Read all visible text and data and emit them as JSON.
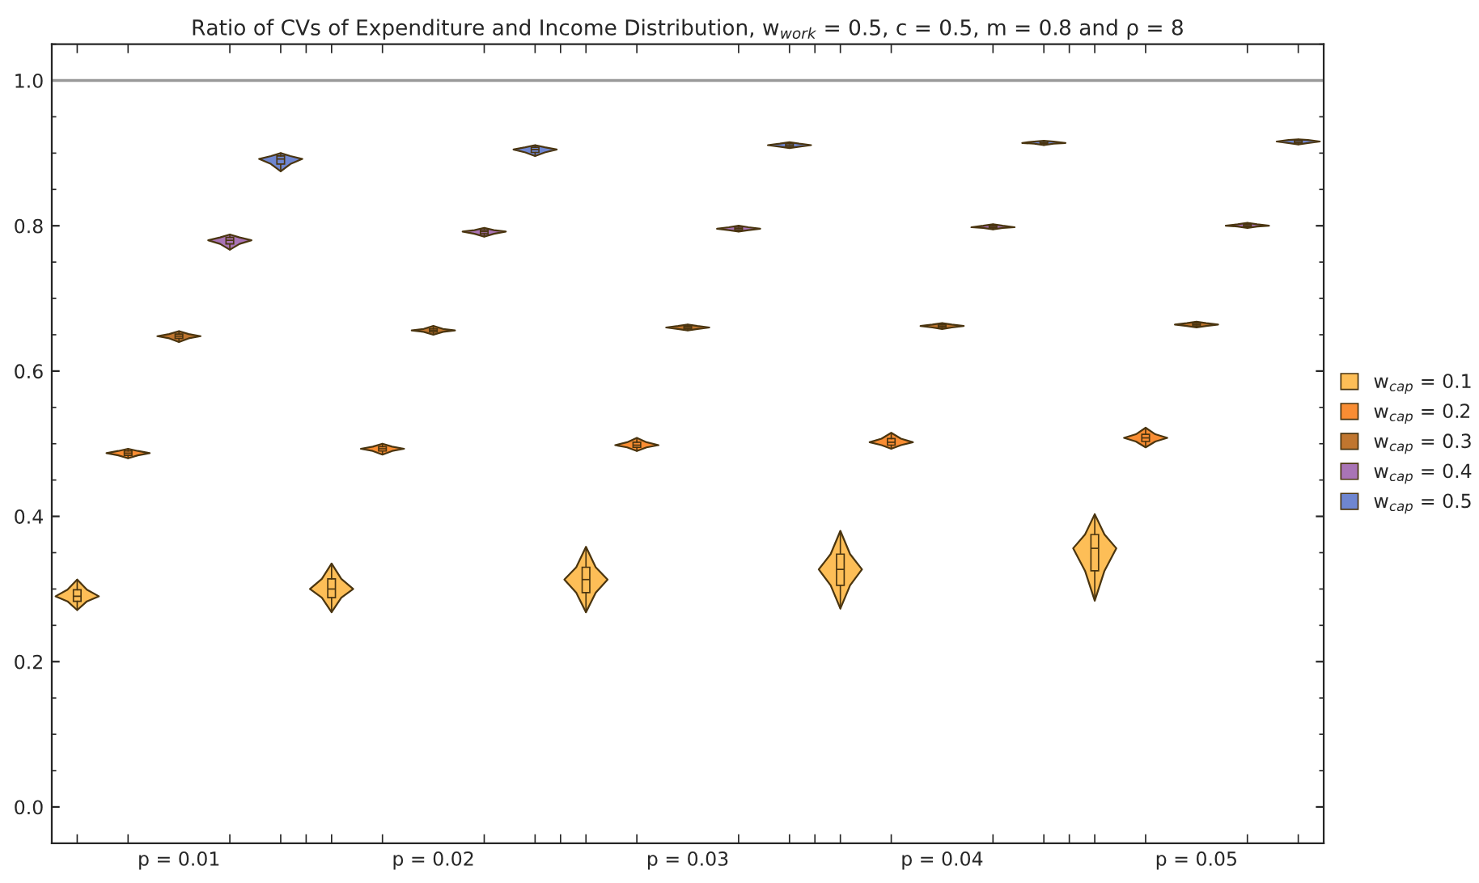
{
  "chart_data": {
    "type": "box",
    "title": "Ratio of CVs of Expenditure and Income Distribution, w$_{work}$ = 0.5, c = 0.5, m = 0.8 and ρ = 8",
    "categories": [
      "p = 0.01",
      "p = 0.02",
      "p = 0.03",
      "p = 0.04",
      "p = 0.05"
    ],
    "series": [
      {
        "name": "w$_{cap}$ = 0.1",
        "color": "#fdbe57",
        "boxes": [
          {
            "low": 0.271,
            "q1": 0.283,
            "median": 0.29,
            "q3": 0.299,
            "high": 0.313
          },
          {
            "low": 0.268,
            "q1": 0.288,
            "median": 0.3,
            "q3": 0.314,
            "high": 0.335
          },
          {
            "low": 0.268,
            "q1": 0.295,
            "median": 0.313,
            "q3": 0.33,
            "high": 0.358
          },
          {
            "low": 0.273,
            "q1": 0.305,
            "median": 0.327,
            "q3": 0.348,
            "high": 0.38
          },
          {
            "low": 0.284,
            "q1": 0.325,
            "median": 0.356,
            "q3": 0.375,
            "high": 0.403
          }
        ]
      },
      {
        "name": "w$_{cap}$ = 0.2",
        "color": "#f98d33",
        "boxes": [
          {
            "low": 0.48,
            "q1": 0.484,
            "median": 0.487,
            "q3": 0.49,
            "high": 0.493
          },
          {
            "low": 0.485,
            "q1": 0.49,
            "median": 0.493,
            "q3": 0.496,
            "high": 0.5
          },
          {
            "low": 0.49,
            "q1": 0.495,
            "median": 0.498,
            "q3": 0.502,
            "high": 0.508
          },
          {
            "low": 0.493,
            "q1": 0.498,
            "median": 0.502,
            "q3": 0.507,
            "high": 0.515
          },
          {
            "low": 0.495,
            "q1": 0.503,
            "median": 0.508,
            "q3": 0.513,
            "high": 0.522
          }
        ]
      },
      {
        "name": "w$_{cap}$ = 0.3",
        "color": "#c0762f",
        "boxes": [
          {
            "low": 0.64,
            "q1": 0.645,
            "median": 0.648,
            "q3": 0.651,
            "high": 0.655
          },
          {
            "low": 0.65,
            "q1": 0.654,
            "median": 0.656,
            "q3": 0.658,
            "high": 0.662
          },
          {
            "low": 0.656,
            "q1": 0.658,
            "median": 0.66,
            "q3": 0.662,
            "high": 0.664
          },
          {
            "low": 0.658,
            "q1": 0.66,
            "median": 0.662,
            "q3": 0.664,
            "high": 0.666
          },
          {
            "low": 0.66,
            "q1": 0.662,
            "median": 0.664,
            "q3": 0.666,
            "high": 0.668
          }
        ]
      },
      {
        "name": "w$_{cap}$ = 0.4",
        "color": "#a974b5",
        "boxes": [
          {
            "low": 0.767,
            "q1": 0.775,
            "median": 0.78,
            "q3": 0.784,
            "high": 0.788
          },
          {
            "low": 0.785,
            "q1": 0.789,
            "median": 0.792,
            "q3": 0.794,
            "high": 0.797
          },
          {
            "low": 0.792,
            "q1": 0.794,
            "median": 0.796,
            "q3": 0.798,
            "high": 0.8
          },
          {
            "low": 0.795,
            "q1": 0.797,
            "median": 0.798,
            "q3": 0.8,
            "high": 0.802
          },
          {
            "low": 0.797,
            "q1": 0.799,
            "median": 0.8,
            "q3": 0.802,
            "high": 0.804
          }
        ]
      },
      {
        "name": "w$_{cap}$ = 0.5",
        "color": "#6f86d0",
        "boxes": [
          {
            "low": 0.875,
            "q1": 0.885,
            "median": 0.892,
            "q3": 0.896,
            "high": 0.9
          },
          {
            "low": 0.896,
            "q1": 0.901,
            "median": 0.905,
            "q3": 0.908,
            "high": 0.911
          },
          {
            "low": 0.907,
            "q1": 0.909,
            "median": 0.911,
            "q3": 0.913,
            "high": 0.915
          },
          {
            "low": 0.911,
            "q1": 0.913,
            "median": 0.914,
            "q3": 0.916,
            "high": 0.917
          },
          {
            "low": 0.912,
            "q1": 0.914,
            "median": 0.916,
            "q3": 0.918,
            "high": 0.919
          }
        ]
      }
    ],
    "ylim": [
      -0.05,
      1.05
    ],
    "yticks": [
      {
        "value": 0,
        "label": "0.0"
      },
      0.2,
      0.4,
      0.6,
      0.8,
      {
        "value": 1,
        "label": "1.0"
      }
    ],
    "ref_lines": [
      {
        "axis": "y",
        "value": 1.0,
        "color": "#999999"
      }
    ],
    "grid": false,
    "legend": "right"
  }
}
